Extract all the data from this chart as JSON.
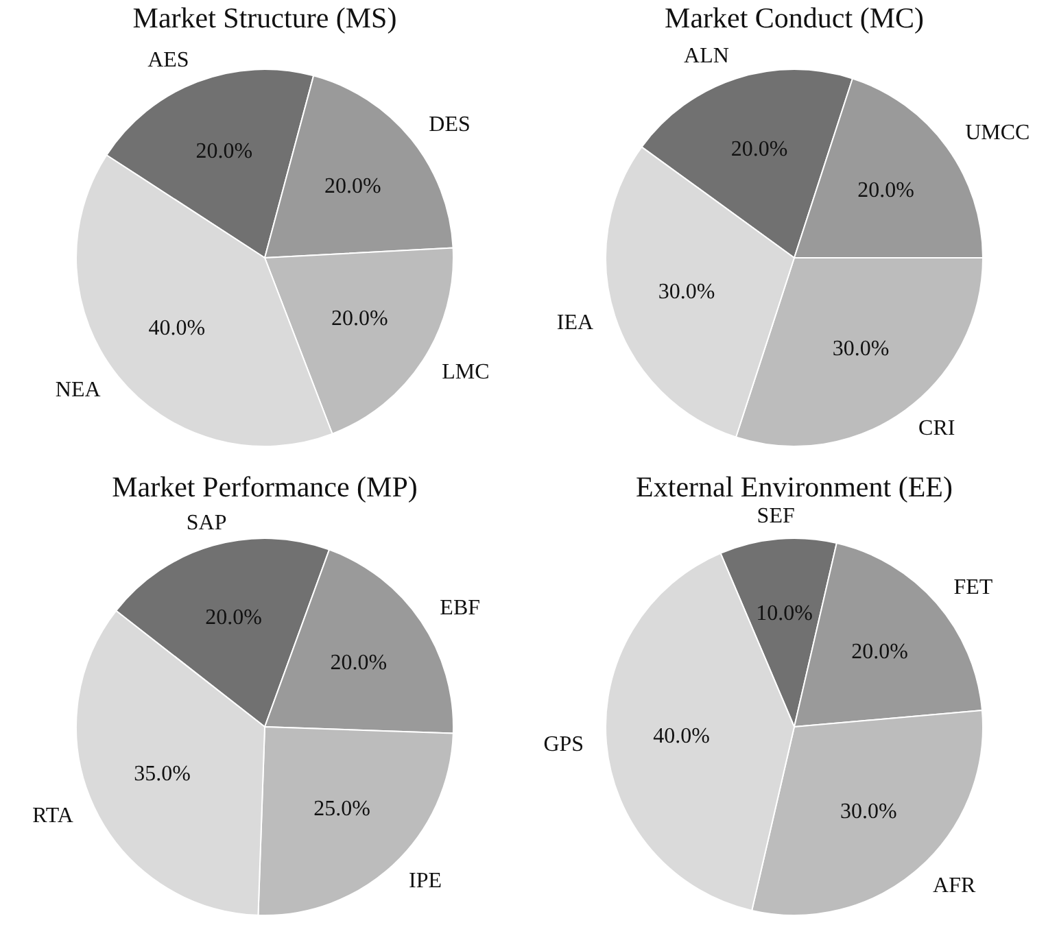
{
  "chart_data": [
    {
      "type": "pie",
      "title": "Market Structure (MS)",
      "categories": [
        "AES",
        "DES",
        "LMC",
        "NEA"
      ],
      "values": [
        20,
        20,
        20,
        40
      ],
      "value_labels": [
        "20.0%",
        "20.0%",
        "20.0%",
        "40.0%"
      ],
      "colors": [
        "#717171",
        "#9a9a9a",
        "#bcbcbc",
        "#dadada"
      ]
    },
    {
      "type": "pie",
      "title": "Market Conduct (MC)",
      "categories": [
        "ALN",
        "UMCC",
        "CRI",
        "IEA"
      ],
      "values": [
        20,
        20,
        30,
        30
      ],
      "value_labels": [
        "20.0%",
        "20.0%",
        "30.0%",
        "30.0%"
      ],
      "colors": [
        "#717171",
        "#9a9a9a",
        "#bcbcbc",
        "#dadada"
      ]
    },
    {
      "type": "pie",
      "title": "Market Performance (MP)",
      "categories": [
        "SAP",
        "EBF",
        "IPE",
        "RTA"
      ],
      "values": [
        20,
        20,
        25,
        35
      ],
      "value_labels": [
        "20.0%",
        "20.0%",
        "25.0%",
        "35.0%"
      ],
      "colors": [
        "#717171",
        "#9a9a9a",
        "#bcbcbc",
        "#dadada"
      ]
    },
    {
      "type": "pie",
      "title": "External Environment (EE)",
      "categories": [
        "SEF",
        "FET",
        "AFR",
        "GPS"
      ],
      "values": [
        10,
        20,
        30,
        40
      ],
      "value_labels": [
        "10.0%",
        "20.0%",
        "30.0%",
        "40.0%"
      ],
      "colors": [
        "#717171",
        "#9a9a9a",
        "#bcbcbc",
        "#dadada"
      ]
    }
  ]
}
